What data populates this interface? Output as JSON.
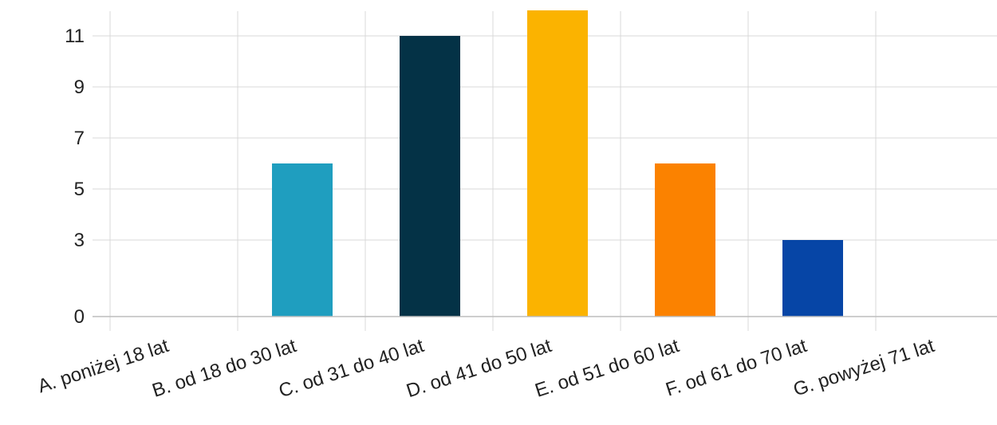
{
  "chart_data": {
    "type": "bar",
    "title": "",
    "xlabel": "",
    "ylabel": "",
    "categories": [
      "A. poniżej 18 lat",
      "B. od 18 do 30 lat",
      "C. od 31 do 40 lat",
      "D. od 41 do 50 lat",
      "E. od 51 do 60 lat",
      "F. od 61 do 70 lat",
      "G. powyżej 71 lat"
    ],
    "values": [
      0,
      6,
      11,
      12,
      6,
      3,
      0
    ],
    "colors": [
      "#1f9ebf",
      "#1f9ebf",
      "#043246",
      "#fbb300",
      "#fb8200",
      "#0645a6",
      "#1f9ebf"
    ],
    "yticks": [
      0,
      3,
      5,
      7,
      9,
      11
    ],
    "ylim": [
      0,
      12
    ],
    "grid": true,
    "legend": "none"
  }
}
